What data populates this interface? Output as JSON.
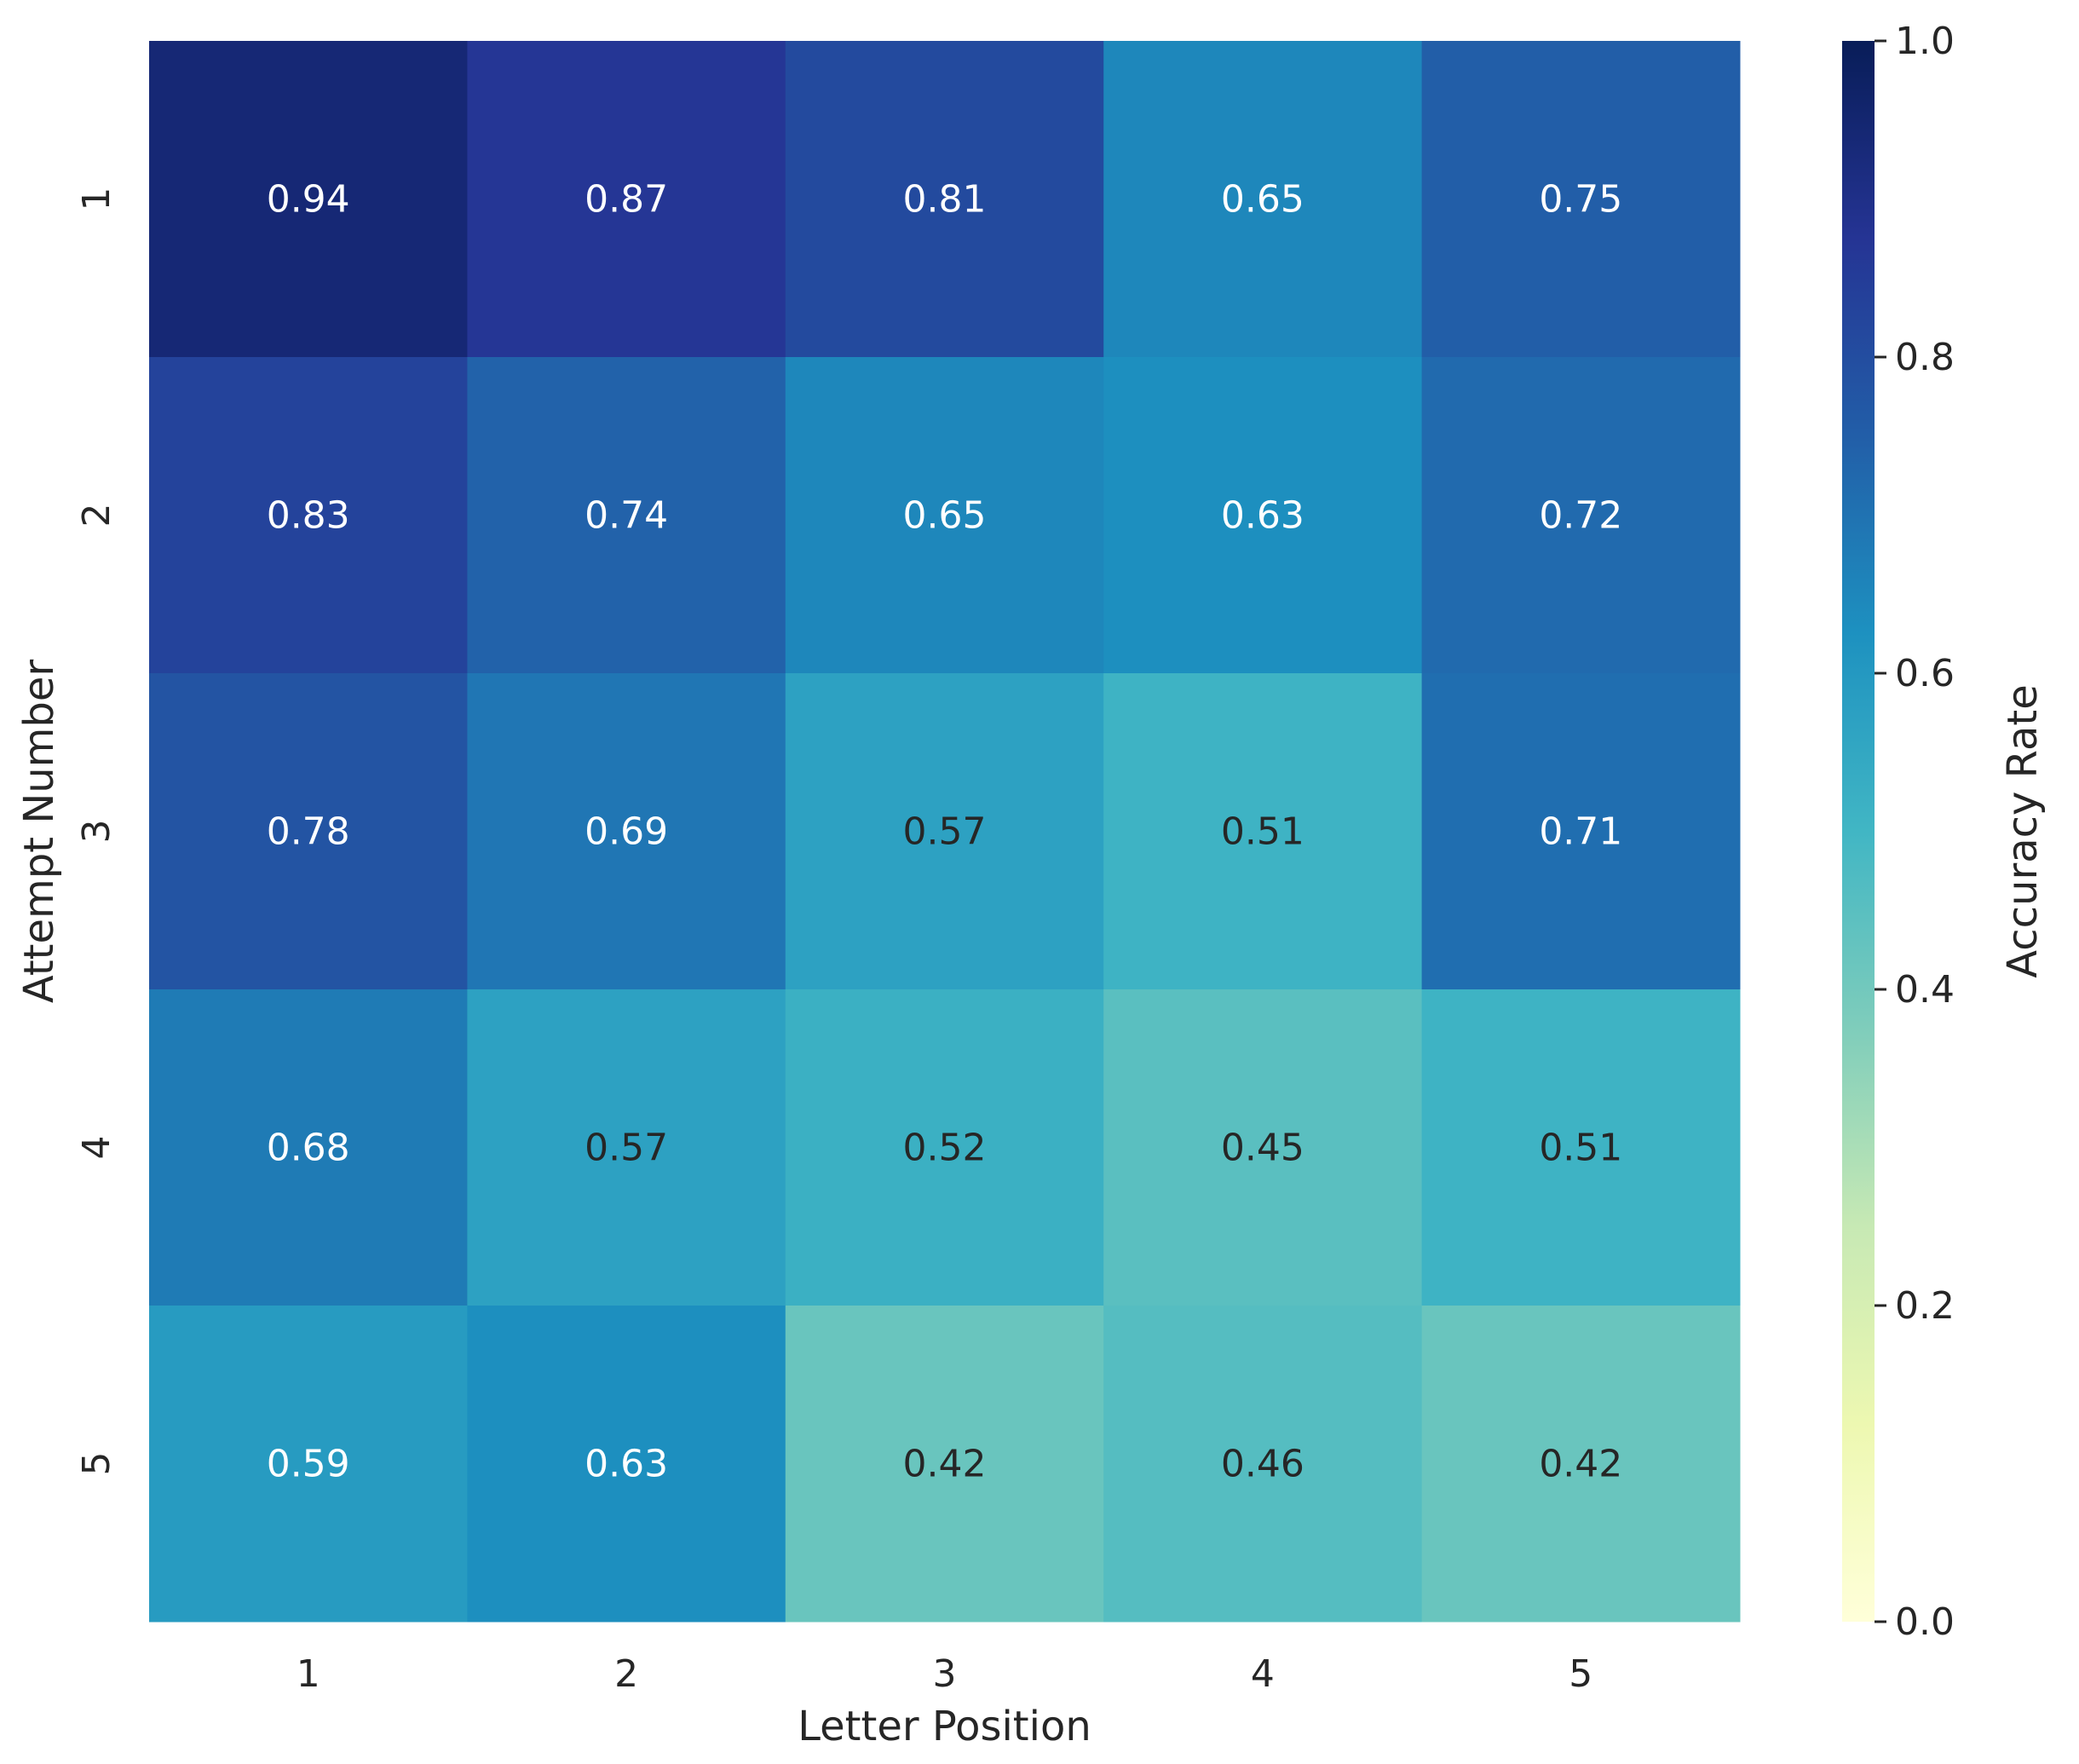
{
  "chart_data": {
    "type": "heatmap",
    "title": "",
    "xlabel": "Letter Position",
    "ylabel": "Attempt Number",
    "x_categories": [
      "1",
      "2",
      "3",
      "4",
      "5"
    ],
    "y_categories": [
      "1",
      "2",
      "3",
      "4",
      "5"
    ],
    "values": [
      [
        0.94,
        0.87,
        0.81,
        0.65,
        0.75
      ],
      [
        0.83,
        0.74,
        0.65,
        0.63,
        0.72
      ],
      [
        0.78,
        0.69,
        0.57,
        0.51,
        0.71
      ],
      [
        0.68,
        0.57,
        0.52,
        0.45,
        0.51
      ],
      [
        0.59,
        0.63,
        0.42,
        0.46,
        0.42
      ]
    ],
    "value_labels": [
      [
        "0.94",
        "0.87",
        "0.81",
        "0.65",
        "0.75"
      ],
      [
        "0.83",
        "0.74",
        "0.65",
        "0.63",
        "0.72"
      ],
      [
        "0.78",
        "0.69",
        "0.57",
        "0.51",
        "0.71"
      ],
      [
        "0.68",
        "0.57",
        "0.52",
        "0.45",
        "0.51"
      ],
      [
        "0.59",
        "0.63",
        "0.42",
        "0.46",
        "0.42"
      ]
    ],
    "colorbar": {
      "label": "Accuracy Rate",
      "range": [
        0.0,
        1.0
      ],
      "ticks": [
        0.0,
        0.2,
        0.4,
        0.6,
        0.8,
        1.0
      ],
      "tick_labels": [
        "0.0",
        "0.2",
        "0.4",
        "0.6",
        "0.8",
        "1.0"
      ],
      "colormap": "YlGnBu",
      "colormap_stops": [
        "#ffffd9",
        "#edf8b1",
        "#c7e9b4",
        "#7fcdbb",
        "#41b6c4",
        "#1d91c0",
        "#225ea8",
        "#253494",
        "#081d58"
      ]
    },
    "annotation_text_colors": {
      "dark_background": "#ffffff",
      "light_background": "#262626"
    },
    "grid": false,
    "legend": "colorbar-right"
  }
}
